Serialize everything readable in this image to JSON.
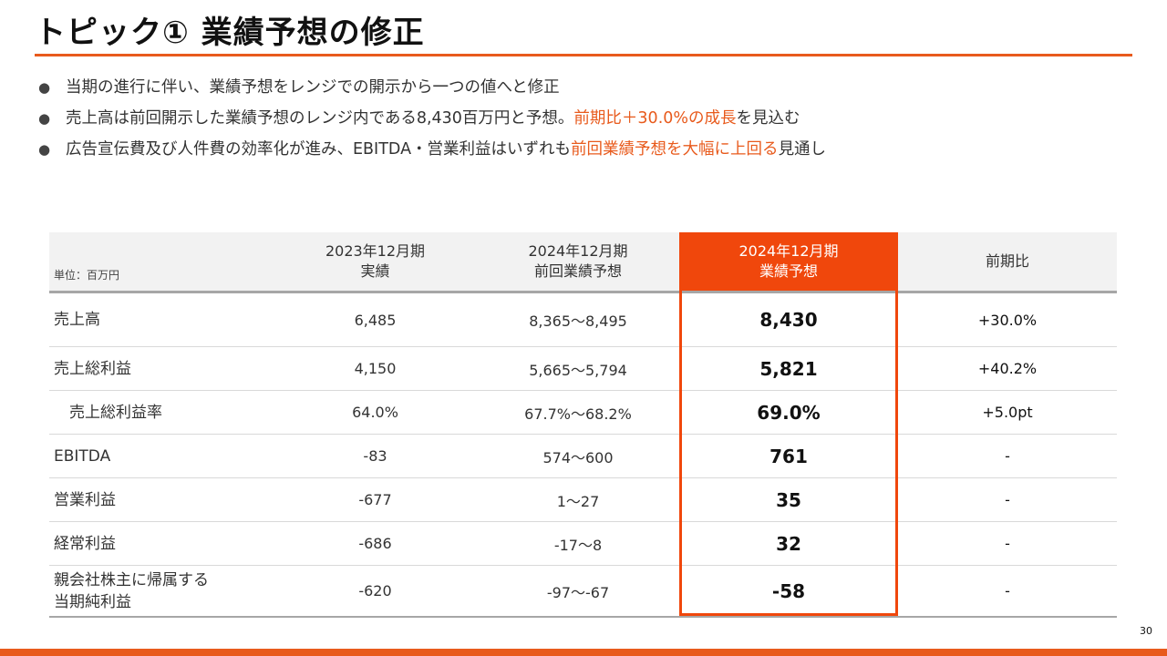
{
  "title": "トピック① 業績予想の修正",
  "bullets": [
    {
      "text": "当期の進行に伴い、業績予想をレンジでの開示から一つの値へと修正"
    },
    {
      "pre": "売上高は前回開示した業績予想のレンジ内である8,430百万円と予想。",
      "accent": "前期比＋30.0%の成長",
      "post": "を見込む"
    },
    {
      "pre": "広告宣伝費及び人件費の効率化が進み、EBITDA・営業利益はいずれも",
      "accent": "前回業績予想を大幅に上回る",
      "post": "見通し"
    }
  ],
  "table": {
    "unit": "単位：百万円",
    "headers": [
      {
        "line1": "2023年12月期",
        "line2": "実績"
      },
      {
        "line1": "2024年12月期",
        "line2": "前回業績予想"
      },
      {
        "line1": "2024年12月期",
        "line2": "業績予想"
      },
      {
        "line1": "前期比",
        "line2": ""
      }
    ],
    "rows": [
      {
        "label": "売上高",
        "label2": "",
        "actual": "6,485",
        "prev": "8,365〜8,495",
        "forecast": "8,430",
        "yoy": "+30.0%"
      },
      {
        "label": "売上総利益",
        "label2": "",
        "actual": "4,150",
        "prev": "5,665〜5,794",
        "forecast": "5,821",
        "yoy": "+40.2%"
      },
      {
        "label": "売上総利益率",
        "label2": "",
        "actual": "64.0%",
        "prev": "67.7%〜68.2%",
        "forecast": "69.0%",
        "yoy": "+5.0pt"
      },
      {
        "label": "EBITDA",
        "label2": "",
        "actual": "-83",
        "prev": "574〜600",
        "forecast": "761",
        "yoy": "-"
      },
      {
        "label": "営業利益",
        "label2": "",
        "actual": "-677",
        "prev": "1〜27",
        "forecast": "35",
        "yoy": "-"
      },
      {
        "label": "経常利益",
        "label2": "",
        "actual": "-686",
        "prev": "-17〜8",
        "forecast": "32",
        "yoy": "-"
      },
      {
        "label": "親会社株主に帰属する",
        "label2": "当期純利益",
        "actual": "-620",
        "prev": "-97〜-67",
        "forecast": "-58",
        "yoy": "-"
      }
    ]
  },
  "page_number": "30",
  "colors": {
    "accent": "#e85a1c",
    "highlight": "#f0470c",
    "header_bg": "#f2f2f2"
  }
}
